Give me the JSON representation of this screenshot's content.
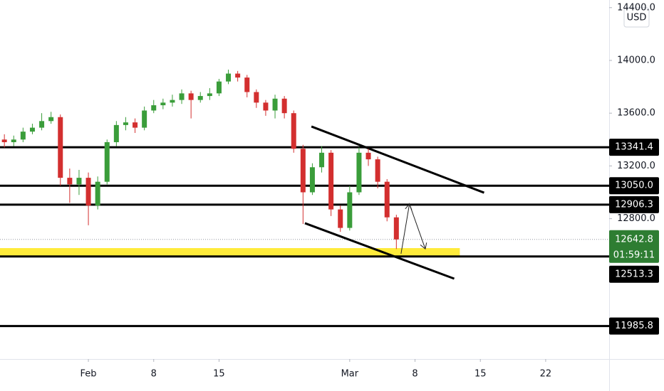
{
  "chart_data": {
    "type": "candlestick",
    "currency": "USD",
    "x": [
      -9,
      -8,
      -7,
      -6,
      -5,
      -4,
      -3,
      -2,
      -1,
      0,
      1,
      2,
      3,
      4,
      5,
      6,
      7,
      8,
      9,
      10,
      11,
      12,
      13,
      14,
      15,
      16,
      17,
      18,
      19,
      20,
      21,
      22,
      23,
      24,
      25,
      26,
      27,
      28,
      29,
      30,
      31,
      32,
      33
    ],
    "open": [
      13400,
      13380,
      13400,
      13460,
      13490,
      13540,
      13570,
      13110,
      13060,
      13110,
      12900,
      13080,
      13380,
      13510,
      13530,
      13490,
      13620,
      13660,
      13680,
      13700,
      13750,
      13700,
      13730,
      13750,
      13840,
      13900,
      13870,
      13760,
      13680,
      13620,
      13710,
      13600,
      13330,
      13000,
      13190,
      13300,
      12870,
      12730,
      13000,
      13300,
      13250,
      13080,
      12810
    ],
    "high": [
      13440,
      13430,
      13490,
      13520,
      13600,
      13610,
      13590,
      13180,
      13170,
      13150,
      13120,
      13400,
      13540,
      13570,
      13560,
      13650,
      13700,
      13710,
      13740,
      13780,
      13770,
      13760,
      13790,
      13860,
      13930,
      13920,
      13890,
      13780,
      13700,
      13740,
      13730,
      13620,
      13360,
      13220,
      13350,
      13320,
      12900,
      13050,
      13340,
      13330,
      13270,
      13100,
      12830
    ],
    "low": [
      13340,
      13350,
      13380,
      13440,
      13470,
      13520,
      13050,
      12920,
      12980,
      12750,
      12870,
      13060,
      13350,
      13470,
      13450,
      13470,
      13600,
      13630,
      13650,
      13670,
      13560,
      13680,
      13700,
      13730,
      13820,
      13840,
      13720,
      13640,
      13580,
      13560,
      13560,
      13300,
      12760,
      12980,
      13150,
      12820,
      12700,
      12710,
      12980,
      13200,
      13030,
      12780,
      12570
    ],
    "close": [
      13380,
      13400,
      13460,
      13490,
      13540,
      13570,
      13110,
      13060,
      13110,
      12900,
      13080,
      13380,
      13510,
      13530,
      13490,
      13620,
      13660,
      13680,
      13700,
      13750,
      13700,
      13730,
      13750,
      13840,
      13900,
      13870,
      13760,
      13680,
      13620,
      13710,
      13600,
      13330,
      13000,
      13190,
      13300,
      12870,
      12730,
      13000,
      13300,
      13250,
      13080,
      12810,
      12642.8
    ],
    "up_color": "#3a9d3a",
    "down_color": "#d32f2f",
    "xlim": [
      -9.47,
      55.8
    ],
    "ylim": [
      11736,
      14458
    ],
    "yticks": [
      {
        "value": 12800,
        "label": "12800.0"
      },
      {
        "value": 13200,
        "label": "13200.0"
      },
      {
        "value": 13600,
        "label": "13600.0"
      },
      {
        "value": 14000,
        "label": "14000.0"
      },
      {
        "value": 14400,
        "label": "14400.0"
      }
    ],
    "xticks": [
      {
        "value": 0,
        "label": "Feb"
      },
      {
        "value": 7,
        "label": "8"
      },
      {
        "value": 14,
        "label": "15"
      },
      {
        "value": 28,
        "label": "Mar"
      },
      {
        "value": 35,
        "label": "8"
      },
      {
        "value": 42,
        "label": "15"
      },
      {
        "value": 49,
        "label": "22"
      }
    ],
    "levels": [
      13341.4,
      {
        "value": 13050.0,
        "label": "13050.0"
      },
      12906.3,
      12513.3,
      11985.8
    ],
    "level_color": "#000000",
    "current_price": 12642.8,
    "countdown": "01:59:11",
    "current_color": "#2e7d32",
    "zone": {
      "from": 12513.3,
      "to": 12577,
      "x_end": 39.8,
      "color": "#ffeb3b"
    },
    "trendlines": [
      {
        "x": [
          23.9,
          42.4
        ],
        "y": [
          13499,
          12997
        ]
      },
      {
        "x": [
          23.2,
          39.2
        ],
        "y": [
          12766,
          12345
        ]
      }
    ],
    "arrow": {
      "x": [
        33.5,
        34.4,
        36.1
      ],
      "y": [
        12534,
        12911,
        12571
      ]
    }
  }
}
